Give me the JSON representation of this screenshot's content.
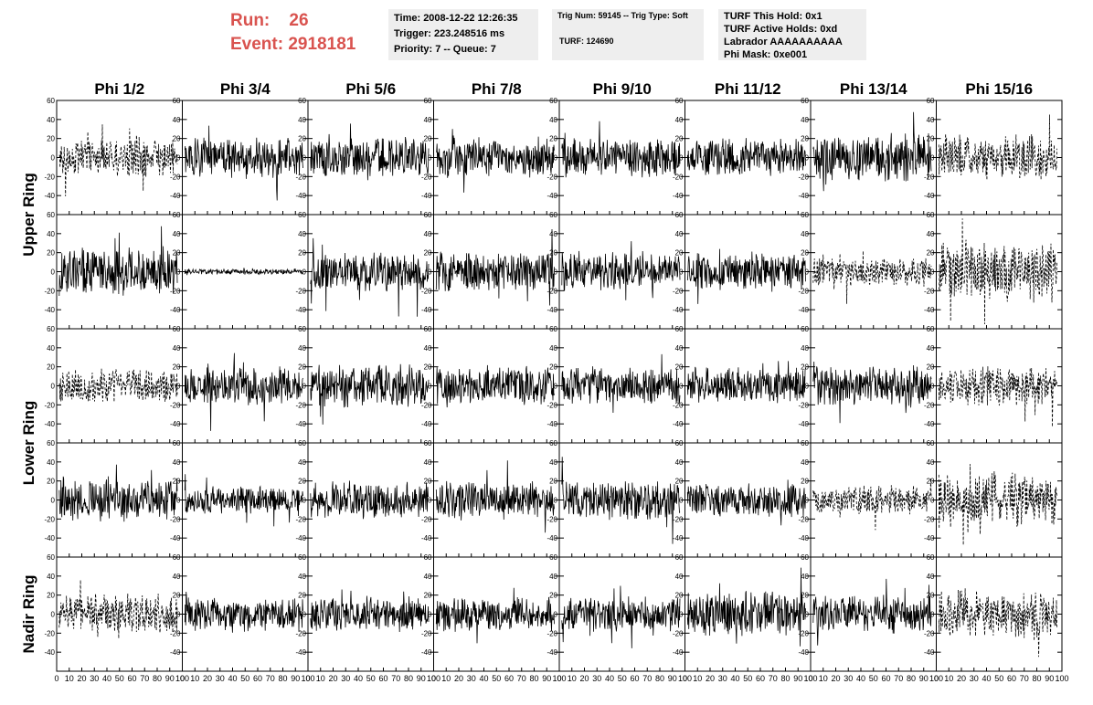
{
  "header": {
    "run_label": "Run:",
    "run_value": "26",
    "event_label": "Event:",
    "event_value": "2918181",
    "time": "Time: 2008-12-22 12:26:35",
    "trigger": "Trigger: 223.248516 ms",
    "priority": "Priority: 7 -- Queue: 7",
    "trig_num": "Trig Num: 59145 -- Trig Type: Soft",
    "turf": "TURF: 124690",
    "turf_hold": "TURF This Hold: 0x1",
    "turf_active": "TURF Active Holds: 0xd",
    "labrador": "Labrador AAAAAAAAAA",
    "phi_mask": "Phi Mask: 0xe001"
  },
  "colors": {
    "title_red": "#d9534f",
    "trace": "#000000",
    "info_bg": "#eeeeee"
  },
  "chart_data": {
    "type": "line",
    "columns": [
      "Phi 1/2",
      "Phi 3/4",
      "Phi 5/6",
      "Phi 7/8",
      "Phi 9/10",
      "Phi 11/12",
      "Phi 13/14",
      "Phi 15/16"
    ],
    "ring_labels": [
      "Upper Ring",
      "Lower Ring",
      "Nadir Ring"
    ],
    "xlim": [
      0,
      100
    ],
    "ylim": [
      -60,
      60
    ],
    "xticks": [
      "0",
      "10",
      "20",
      "30",
      "40",
      "50",
      "60",
      "70",
      "80",
      "90",
      "100"
    ],
    "yticks": [
      "-60",
      "-40",
      "-20",
      "0",
      "20",
      "40",
      "60"
    ],
    "rows": [
      {
        "ring": "Upper Ring",
        "amplitudes": [
          13,
          15,
          14,
          15,
          14,
          13,
          17,
          16
        ],
        "dashed": [
          true,
          false,
          false,
          false,
          false,
          false,
          false,
          true
        ]
      },
      {
        "ring": "Upper Ring",
        "amplitudes": [
          17,
          2,
          15,
          14,
          14,
          13,
          10,
          22
        ],
        "dashed": [
          false,
          false,
          false,
          false,
          false,
          false,
          true,
          true
        ]
      },
      {
        "ring": "Lower Ring",
        "amplitudes": [
          12,
          14,
          16,
          14,
          13,
          13,
          15,
          14
        ],
        "dashed": [
          true,
          false,
          false,
          false,
          false,
          false,
          false,
          true
        ]
      },
      {
        "ring": "Lower Ring",
        "amplitudes": [
          15,
          10,
          13,
          13,
          14,
          12,
          10,
          20
        ],
        "dashed": [
          false,
          false,
          false,
          false,
          false,
          false,
          true,
          true
        ]
      },
      {
        "ring": "Nadir Ring",
        "amplitudes": [
          14,
          12,
          12,
          12,
          12,
          16,
          13,
          18
        ],
        "dashed": [
          true,
          false,
          false,
          false,
          false,
          false,
          false,
          true
        ]
      }
    ]
  }
}
